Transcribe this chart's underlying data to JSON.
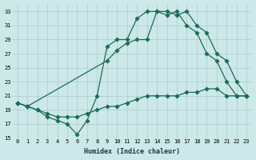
{
  "xlabel": "Humidex (Indice chaleur)",
  "background_color": "#cce8e8",
  "grid_color": "#aacccc",
  "line_color": "#1a6b5a",
  "xlim": [
    -0.5,
    23.5
  ],
  "ylim": [
    15,
    34
  ],
  "yticks": [
    15,
    17,
    19,
    21,
    23,
    25,
    27,
    29,
    31,
    33
  ],
  "xticks": [
    0,
    1,
    2,
    3,
    4,
    5,
    6,
    7,
    8,
    9,
    10,
    11,
    12,
    13,
    14,
    15,
    16,
    17,
    18,
    19,
    20,
    21,
    22,
    23
  ],
  "line1_x": [
    0,
    1,
    2,
    3,
    4,
    5,
    6,
    7,
    8,
    9,
    10,
    11,
    12,
    13,
    14,
    15,
    16,
    17,
    18,
    19,
    20,
    21,
    22,
    23
  ],
  "line1_y": [
    20.0,
    19.5,
    19.0,
    18.5,
    18.0,
    18.0,
    18.0,
    18.5,
    19.0,
    19.5,
    19.5,
    20.0,
    20.5,
    21.0,
    21.0,
    21.0,
    21.0,
    21.5,
    21.5,
    22.0,
    22.0,
    21.0,
    21.0,
    21.0
  ],
  "line2_x": [
    0,
    1,
    2,
    3,
    4,
    5,
    6,
    7,
    8,
    9,
    10,
    11,
    12,
    13,
    14,
    15,
    16,
    17,
    18,
    19,
    20,
    21,
    22,
    23
  ],
  "line2_y": [
    20.0,
    19.5,
    19.0,
    18.0,
    17.5,
    17.0,
    15.5,
    17.5,
    21.0,
    28.0,
    29.0,
    29.0,
    32.0,
    33.0,
    33.0,
    32.5,
    33.0,
    31.0,
    30.0,
    27.0,
    26.0,
    23.0,
    21.0,
    21.0
  ],
  "line3_x": [
    0,
    1,
    9,
    10,
    11,
    12,
    13,
    14,
    15,
    16,
    17,
    18,
    19,
    20,
    21,
    22,
    23
  ],
  "line3_y": [
    20.0,
    19.5,
    26.0,
    27.5,
    28.5,
    29.0,
    29.0,
    33.0,
    33.0,
    32.5,
    33.0,
    31.0,
    30.0,
    27.0,
    26.0,
    23.0,
    21.0
  ]
}
